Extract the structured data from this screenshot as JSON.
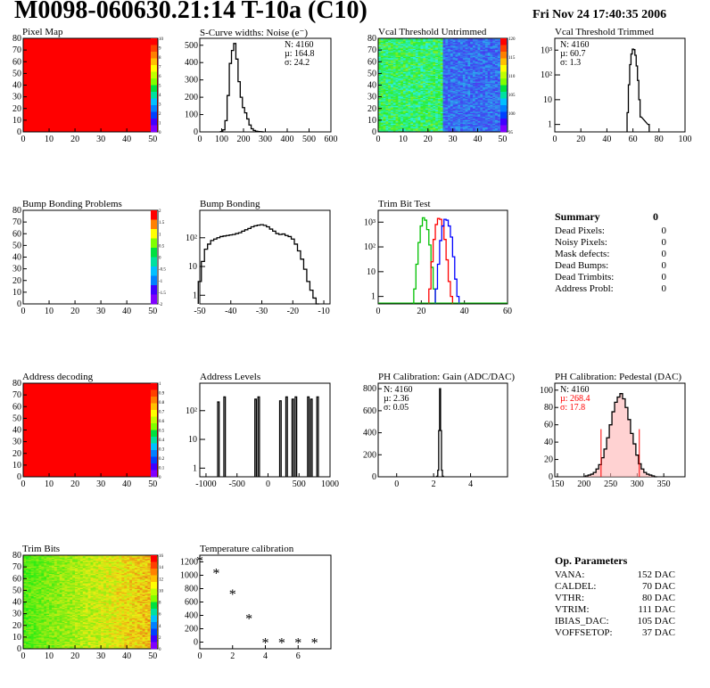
{
  "page": {
    "title": "M0098-060630.21:14 T-10a (C10)",
    "date": "Fri Nov 24 17:40:35 2006"
  },
  "panels": {
    "pixel_map": {
      "title": "Pixel Map"
    },
    "scurve": {
      "title": "S-Curve widths: Noise (e⁻)",
      "stats": [
        "N: 4160",
        "µ: 164.8",
        "σ: 24.2"
      ]
    },
    "vcal_untrimmed": {
      "title": "Vcal Threshold Untrimmed"
    },
    "vcal_trimmed": {
      "title": "Vcal Threshold Trimmed",
      "stats": [
        "N: 4160",
        "µ: 60.7",
        "σ:  1.3"
      ]
    },
    "bump_problems": {
      "title": "Bump Bonding Problems"
    },
    "bump_bonding": {
      "title": "Bump Bonding"
    },
    "trim_bit_test": {
      "title": "Trim Bit Test"
    },
    "address_decoding": {
      "title": "Address decoding"
    },
    "address_levels": {
      "title": "Address Levels"
    },
    "ph_gain": {
      "title": "PH Calibration: Gain (ADC/DAC)",
      "stats": [
        "N: 4160",
        "µ: 2.36",
        "σ: 0.05"
      ]
    },
    "ph_pedestal": {
      "title": "PH Calibration: Pedestal (DAC)",
      "stats": [
        "N: 4160",
        "µ: 268.4",
        "σ: 17.8"
      ]
    },
    "trim_bits": {
      "title": "Trim Bits"
    },
    "temperature": {
      "title": "Temperature calibration"
    }
  },
  "summary": {
    "title": "Summary",
    "total": "0",
    "rows": [
      {
        "label": "Dead Pixels:",
        "value": "0"
      },
      {
        "label": "Noisy Pixels:",
        "value": "0"
      },
      {
        "label": "Mask defects:",
        "value": "0"
      },
      {
        "label": "Dead Bumps:",
        "value": "0"
      },
      {
        "label": "Dead Trimbits:",
        "value": "0"
      },
      {
        "label": "Address Probl:",
        "value": "0"
      }
    ]
  },
  "op_params": {
    "title": "Op. Parameters",
    "rows": [
      {
        "label": "VANA:",
        "value": "152 DAC"
      },
      {
        "label": "CALDEL:",
        "value": "70 DAC"
      },
      {
        "label": "VTHR:",
        "value": "80 DAC"
      },
      {
        "label": "VTRIM:",
        "value": "111 DAC"
      },
      {
        "label": "IBIAS_DAC:",
        "value": "105 DAC"
      },
      {
        "label": "VOFFSETOP:",
        "value": "37 DAC"
      }
    ]
  },
  "colors": {
    "stat_red": "#ff0000",
    "map_red": "#ff0000",
    "trim_green": "#00c000",
    "trim_red": "#ff0000",
    "trim_blue": "#0000ff"
  },
  "chart_data": [
    {
      "id": "pixel_map",
      "type": "heatmap",
      "title": "Pixel Map",
      "x_ticks": [
        "0",
        "10",
        "20",
        "30",
        "40",
        "50"
      ],
      "y_ticks": [
        "0",
        "10",
        "20",
        "30",
        "40",
        "50",
        "60",
        "70",
        "80"
      ],
      "xlim": [
        0,
        52
      ],
      "ylim": [
        0,
        80
      ],
      "fill": "uniform red (all cells at maximum)",
      "z_ticks": [
        "0",
        "1",
        "2",
        "3",
        "4",
        "5",
        "6",
        "7",
        "8",
        "9",
        "10"
      ]
    },
    {
      "id": "scurve",
      "type": "histogram",
      "title": "S-Curve widths: Noise (e⁻)",
      "x_ticks": [
        "0",
        "100",
        "200",
        "300",
        "400",
        "500",
        "600"
      ],
      "y_ticks": [
        "0",
        "100",
        "200",
        "300",
        "400",
        "500"
      ],
      "xlim": [
        0,
        600
      ],
      "ylim": [
        0,
        540
      ],
      "x": [
        100,
        110,
        120,
        130,
        140,
        150,
        160,
        170,
        180,
        190,
        200,
        210,
        220,
        230,
        240,
        250,
        260,
        270,
        280,
        290
      ],
      "values": [
        2,
        12,
        65,
        210,
        395,
        470,
        510,
        420,
        290,
        200,
        140,
        110,
        75,
        40,
        18,
        8,
        4,
        2,
        1,
        0
      ]
    },
    {
      "id": "vcal_untrimmed",
      "type": "heatmap",
      "title": "Vcal Threshold Untrimmed",
      "x_ticks": [
        "0",
        "10",
        "20",
        "30",
        "40",
        "50"
      ],
      "y_ticks": [
        "0",
        "10",
        "20",
        "30",
        "40",
        "50",
        "60",
        "70",
        "80"
      ],
      "xlim": [
        0,
        52
      ],
      "ylim": [
        0,
        80
      ],
      "z_ticks": [
        "95",
        "100",
        "105",
        "110",
        "115",
        "120"
      ],
      "fill": "green/yellow left of column 26, blue right of column 26"
    },
    {
      "id": "vcal_trimmed",
      "type": "histogram",
      "title": "Vcal Threshold Trimmed",
      "log_y": true,
      "x_ticks": [
        "0",
        "20",
        "40",
        "60",
        "80",
        "100"
      ],
      "y_ticks": [
        "1",
        "10",
        "10²",
        "10³"
      ],
      "xlim": [
        0,
        100
      ],
      "x": [
        56,
        57,
        58,
        59,
        60,
        61,
        62,
        63,
        64,
        65,
        66,
        72
      ],
      "values": [
        3,
        40,
        260,
        700,
        1100,
        1050,
        620,
        230,
        60,
        10,
        2,
        1
      ]
    },
    {
      "id": "bump_problems",
      "type": "heatmap",
      "title": "Bump Bonding Problems",
      "x_ticks": [
        "0",
        "10",
        "20",
        "30",
        "40",
        "50"
      ],
      "y_ticks": [
        "0",
        "10",
        "20",
        "30",
        "40",
        "50",
        "60",
        "70",
        "80"
      ],
      "xlim": [
        0,
        52
      ],
      "ylim": [
        0,
        80
      ],
      "fill": "empty",
      "z_ticks": [
        "-2",
        "-1.5",
        "-1",
        "-0.5",
        "0",
        "0.5",
        "1",
        "1.5",
        "2"
      ]
    },
    {
      "id": "bump_bonding",
      "type": "histogram",
      "title": "Bump Bonding",
      "log_y": true,
      "x_ticks": [
        "-50",
        "-40",
        "-30",
        "-20",
        "-10"
      ],
      "y_ticks": [
        "1",
        "10",
        "10²"
      ],
      "xlim": [
        -50,
        -8
      ],
      "x": [
        -50,
        -49,
        -48,
        -47,
        -46,
        -45,
        -44,
        -43,
        -42,
        -41,
        -40,
        -39,
        -38,
        -37,
        -36,
        -35,
        -34,
        -33,
        -32,
        -31,
        -30,
        -29,
        -28,
        -27,
        -26,
        -25,
        -24,
        -23,
        -22,
        -21,
        -20,
        -19,
        -18,
        -17,
        -16,
        -15,
        -14,
        -13,
        -12
      ],
      "values": [
        3,
        15,
        40,
        60,
        80,
        90,
        100,
        110,
        115,
        120,
        125,
        130,
        140,
        150,
        170,
        190,
        210,
        240,
        260,
        275,
        285,
        270,
        240,
        200,
        170,
        140,
        130,
        135,
        120,
        110,
        90,
        60,
        35,
        18,
        8,
        3,
        1.5,
        0.8,
        0.5
      ]
    },
    {
      "id": "trim_bit_test",
      "type": "histogram",
      "title": "Trim Bit Test",
      "log_y": true,
      "x_ticks": [
        "0",
        "20",
        "40",
        "60"
      ],
      "y_ticks": [
        "1",
        "10",
        "10²",
        "10³"
      ],
      "xlim": [
        0,
        60
      ],
      "series": [
        {
          "color": "green",
          "x": [
            17,
            18,
            19,
            20,
            21,
            22,
            23,
            24,
            25,
            26
          ],
          "values": [
            2,
            20,
            150,
            700,
            1500,
            1200,
            500,
            120,
            15,
            2
          ]
        },
        {
          "color": "red",
          "x": [
            24,
            25,
            26,
            27,
            28,
            29,
            30,
            31,
            32,
            33,
            34
          ],
          "values": [
            2,
            25,
            200,
            800,
            1400,
            1300,
            700,
            200,
            30,
            4,
            1
          ]
        },
        {
          "color": "blue",
          "x": [
            27,
            28,
            29,
            30,
            31,
            32,
            33,
            34,
            35,
            36,
            37
          ],
          "values": [
            2,
            20,
            180,
            700,
            1300,
            1200,
            700,
            250,
            40,
            5,
            1
          ]
        }
      ]
    },
    {
      "id": "address_decoding",
      "type": "heatmap",
      "title": "Address decoding",
      "x_ticks": [
        "0",
        "10",
        "20",
        "30",
        "40",
        "50"
      ],
      "y_ticks": [
        "0",
        "10",
        "20",
        "30",
        "40",
        "50",
        "60",
        "70",
        "80"
      ],
      "xlim": [
        0,
        52
      ],
      "ylim": [
        0,
        80
      ],
      "fill": "uniform red (all cells at maximum)",
      "z_ticks": [
        "0",
        "0.1",
        "0.2",
        "0.3",
        "0.4",
        "0.5",
        "0.6",
        "0.7",
        "0.8",
        "0.9",
        "1"
      ]
    },
    {
      "id": "address_levels",
      "type": "histogram",
      "title": "Address Levels",
      "log_y": true,
      "x_ticks": [
        "-1000",
        "-500",
        "0",
        "500",
        "1000"
      ],
      "y_ticks": [
        "1",
        "10",
        "10²"
      ],
      "xlim": [
        -1100,
        1000
      ],
      "spikes": [
        -800,
        -700,
        -200,
        -150,
        200,
        300,
        400,
        450,
        650,
        700,
        800
      ],
      "spike_values": [
        200,
        300,
        250,
        300,
        220,
        300,
        250,
        300,
        300,
        250,
        300
      ]
    },
    {
      "id": "ph_gain",
      "type": "histogram",
      "title": "PH Calibration: Gain (ADC/DAC)",
      "x_ticks": [
        "0",
        "2",
        "4"
      ],
      "y_ticks": [
        "0",
        "200",
        "400",
        "600",
        "800"
      ],
      "xlim": [
        -1,
        6
      ],
      "ylim": [
        0,
        850
      ],
      "x": [
        2.2,
        2.25,
        2.3,
        2.35,
        2.4,
        2.45,
        2.5
      ],
      "values": [
        5,
        60,
        420,
        800,
        420,
        60,
        5
      ]
    },
    {
      "id": "ph_pedestal",
      "type": "histogram",
      "title": "PH Calibration: Pedestal (DAC)",
      "x_ticks": [
        "150",
        "200",
        "250",
        "300",
        "350"
      ],
      "y_ticks": [
        "0",
        "20",
        "40",
        "60",
        "80",
        "100"
      ],
      "xlim": [
        145,
        390
      ],
      "ylim": [
        0,
        108
      ],
      "x": [
        205,
        210,
        215,
        220,
        225,
        230,
        235,
        240,
        245,
        250,
        255,
        260,
        265,
        270,
        275,
        280,
        285,
        290,
        295,
        300,
        305,
        310,
        315,
        320,
        325,
        330,
        335
      ],
      "values": [
        1,
        2,
        3,
        5,
        9,
        14,
        22,
        32,
        45,
        60,
        75,
        86,
        92,
        96,
        90,
        80,
        66,
        50,
        38,
        25,
        15,
        9,
        5,
        3,
        2,
        1,
        0
      ],
      "cut_lines": [
        232,
        304
      ]
    },
    {
      "id": "trim_bits",
      "type": "heatmap",
      "title": "Trim Bits",
      "x_ticks": [
        "0",
        "10",
        "20",
        "30",
        "40",
        "50"
      ],
      "y_ticks": [
        "0",
        "10",
        "20",
        "30",
        "40",
        "50",
        "60",
        "70",
        "80"
      ],
      "xlim": [
        0,
        52
      ],
      "ylim": [
        0,
        80
      ],
      "z_ticks": [
        "0",
        "2",
        "4",
        "6",
        "8",
        "10",
        "12",
        "14",
        "16"
      ],
      "fill": "green/yellow gradient increasing to the right"
    },
    {
      "id": "temperature",
      "type": "scatter",
      "title": "Temperature calibration",
      "x_ticks": [
        "0",
        "2",
        "4",
        "6"
      ],
      "y_ticks": [
        "0",
        "200",
        "400",
        "600",
        "800",
        "1000",
        "1200"
      ],
      "xlim": [
        0,
        8
      ],
      "ylim": [
        -100,
        1300
      ],
      "x": [
        0,
        1,
        2,
        3,
        4,
        5,
        6,
        7
      ],
      "y": [
        1230,
        1040,
        730,
        360,
        0,
        0,
        0,
        0
      ]
    }
  ]
}
